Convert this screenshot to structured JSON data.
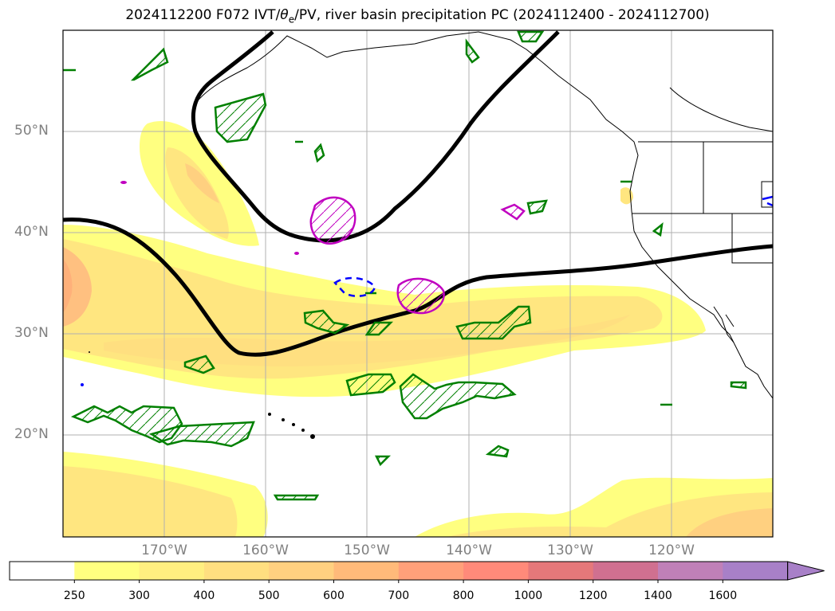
{
  "title": "2024112200 F072 IVT/θe/PV, river basin precipitation PC (2024112400 - 2024112700)",
  "title_parts": {
    "pre": "2024112200 F072 IVT/",
    "theta": "θ",
    "sub": "e",
    "post": "/PV, river basin precipitation PC (2024112400 - 2024112700)"
  },
  "lat_labels": [
    "50°N",
    "40°N",
    "30°N",
    "20°N"
  ],
  "lon_labels": [
    "170°W",
    "160°W",
    "150°W",
    "140°W",
    "130°W",
    "120°W"
  ],
  "colorbar": {
    "levels": [
      250,
      300,
      400,
      500,
      600,
      700,
      800,
      1000,
      1200,
      1400,
      1600
    ],
    "level_labels": [
      "250",
      "300",
      "400",
      "500",
      "600",
      "700",
      "800",
      "1000",
      "1200",
      "1400",
      "1600"
    ],
    "colors": [
      "#ffffff",
      "#ffff80",
      "#ffef80",
      "#ffdf80",
      "#ffd080",
      "#ffba7a",
      "#ffa07a",
      "#ff8a7a",
      "#e5787a",
      "#d07090",
      "#c080b8",
      "#a880c8"
    ],
    "extend": "max"
  },
  "colors": {
    "ivt_low": "#ffff80",
    "ivt_mid": "#ffe680",
    "ivt_high": "#ffc080",
    "theta_e_contour": "#000000",
    "pv_contour": "#008000",
    "precip_contour": "#c000c0",
    "negative_contour": "#0000ff",
    "coastline": "#000000",
    "grid": "#b0b0b0"
  }
}
